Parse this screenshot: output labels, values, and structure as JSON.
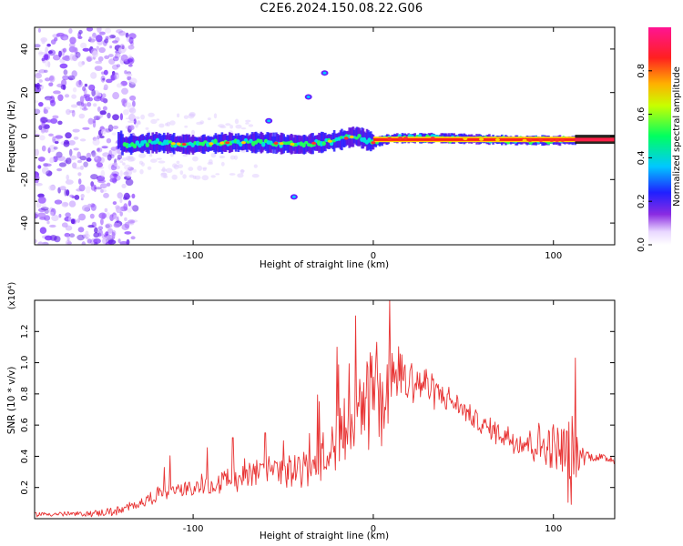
{
  "page_title": "C2E6.2024.150.08.22.G06",
  "chart_data": [
    {
      "type": "heatmap",
      "title": "C2E6.2024.150.08.22.G06",
      "xlabel": "Height of straight line (km)",
      "ylabel": "Frequency (Hz)",
      "xlim": [
        -188,
        134
      ],
      "ylim": [
        -50,
        50
      ],
      "x_ticks": [
        -100,
        0,
        100
      ],
      "y_ticks": [
        -40,
        -20,
        0,
        20,
        40
      ],
      "colorbar": {
        "label": "Normalized spectral amplitude",
        "range": [
          0,
          1
        ],
        "ticks": [
          "0.0",
          "0.2",
          "0.4",
          "0.6",
          "0.8"
        ],
        "colormap": "rainbow (purple → blue → cyan → green → yellow → red → magenta)"
      },
      "features": {
        "noise_region_x": [
          -188,
          -132
        ],
        "signal_band_center_hz": [
          [
            -140,
            -4
          ],
          [
            -120,
            -3
          ],
          [
            -100,
            -4
          ],
          [
            -80,
            -3
          ],
          [
            -60,
            -3
          ],
          [
            -40,
            -4
          ],
          [
            -20,
            -2
          ],
          [
            -10,
            0
          ],
          [
            0,
            -3
          ],
          [
            10,
            -1
          ],
          [
            40,
            -1
          ],
          [
            80,
            -2
          ],
          [
            110,
            -2
          ],
          [
            134,
            -2
          ]
        ],
        "blobs": [
          [
            -58,
            7
          ],
          [
            -36,
            18
          ],
          [
            -27,
            29
          ],
          [
            -44,
            -28
          ]
        ]
      }
    },
    {
      "type": "line",
      "xlabel": "Height of straight line (km)",
      "ylabel": "SNR (10 * v/v)",
      "y_multiplier": "(x10⁴)",
      "xlim": [
        -188,
        134
      ],
      "ylim": [
        0,
        1.4
      ],
      "x_ticks": [
        -100,
        0,
        100
      ],
      "y_ticks": [
        0.2,
        0.4,
        0.6,
        0.8,
        1.0,
        1.2
      ],
      "color": "#e83333",
      "series": [
        {
          "envelope": [
            [
              -188,
              0.03,
              0.01
            ],
            [
              -160,
              0.03,
              0.01
            ],
            [
              -140,
              0.05,
              0.02
            ],
            [
              -130,
              0.1,
              0.02
            ],
            [
              -120,
              0.15,
              0.03
            ],
            [
              -110,
              0.18,
              0.03
            ],
            [
              -100,
              0.2,
              0.03
            ],
            [
              -90,
              0.22,
              0.04
            ],
            [
              -80,
              0.25,
              0.05
            ],
            [
              -70,
              0.28,
              0.05
            ],
            [
              -60,
              0.3,
              0.06
            ],
            [
              -50,
              0.3,
              0.06
            ],
            [
              -40,
              0.32,
              0.07
            ],
            [
              -30,
              0.38,
              0.08
            ],
            [
              -20,
              0.55,
              0.12
            ],
            [
              -10,
              0.6,
              0.2
            ],
            [
              0,
              0.75,
              0.2
            ],
            [
              10,
              0.85,
              0.15
            ],
            [
              20,
              0.9,
              0.1
            ],
            [
              30,
              0.85,
              0.08
            ],
            [
              40,
              0.78,
              0.05
            ],
            [
              50,
              0.7,
              0.04
            ],
            [
              60,
              0.6,
              0.04
            ],
            [
              70,
              0.55,
              0.05
            ],
            [
              80,
              0.5,
              0.06
            ],
            [
              90,
              0.48,
              0.08
            ],
            [
              100,
              0.45,
              0.1
            ],
            [
              110,
              0.42,
              0.15
            ],
            [
              115,
              0.42,
              0.05
            ],
            [
              120,
              0.4,
              0.02
            ],
            [
              134,
              0.38,
              0.02
            ]
          ],
          "spikes": [
            [
              -10,
              1.3
            ],
            [
              9,
              1.4
            ],
            [
              -20,
              1.1
            ],
            [
              16,
              1.05
            ],
            [
              30,
              0.9
            ],
            [
              -30,
              0.75
            ],
            [
              -50,
              0.5
            ],
            [
              112,
              1.03
            ],
            [
              -78,
              0.52
            ],
            [
              -60,
              0.55
            ]
          ]
        }
      ]
    }
  ]
}
